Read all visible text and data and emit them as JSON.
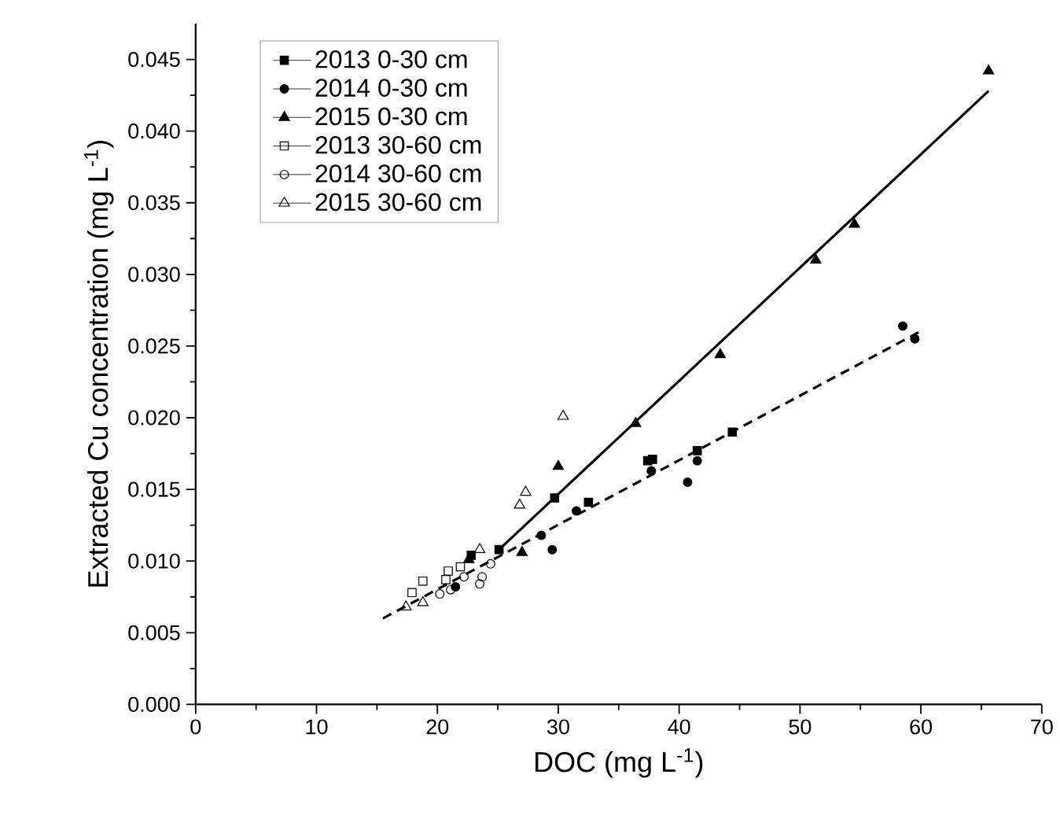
{
  "chart_data": {
    "type": "scatter",
    "xlabel": "DOC (mg L$^{-1}$)",
    "ylabel": "Extracted Cu concentration (mg L$^{-1}$)",
    "xlim": [
      0,
      70
    ],
    "ylim": [
      0,
      0.0475
    ],
    "xticks": [
      0,
      10,
      20,
      30,
      40,
      50,
      60,
      70
    ],
    "yticks": [
      {
        "value": 0,
        "label": "0.000"
      },
      {
        "value": 0.005,
        "label": "0.005"
      },
      {
        "value": 0.01,
        "label": "0.010"
      },
      {
        "value": 0.015,
        "label": "0.015"
      },
      {
        "value": 0.02,
        "label": "0.020"
      },
      {
        "value": 0.025,
        "label": "0.025"
      },
      {
        "value": 0.03,
        "label": "0.030"
      },
      {
        "value": 0.035,
        "label": "0.035"
      },
      {
        "value": 0.04,
        "label": "0.040"
      },
      {
        "value": 0.045,
        "label": "0.045"
      }
    ],
    "grid": false,
    "legend": "top left",
    "series": [
      {
        "name": "2013 0-30 cm",
        "color": "#000000",
        "marker": "square",
        "x": [
          22.8,
          25.1,
          29.7,
          32.5,
          37.4,
          37.8,
          41.5,
          44.4
        ],
        "values": [
          0.0104,
          0.0108,
          0.0144,
          0.0141,
          0.017,
          0.0171,
          0.0177,
          0.019
        ]
      },
      {
        "name": "2014 0-30 cm",
        "color": "#000000",
        "marker": "circle",
        "x": [
          21.5,
          28.6,
          29.5,
          31.5,
          37.7,
          40.7,
          41.5,
          58.5,
          59.5
        ],
        "values": [
          0.0082,
          0.0118,
          0.0108,
          0.0135,
          0.0163,
          0.0155,
          0.017,
          0.0264,
          0.0255
        ]
      },
      {
        "name": "2015 0-30 cm",
        "color": "#000000",
        "marker": "triangle",
        "x": [
          22.6,
          27.0,
          30.0,
          36.4,
          43.4,
          51.3,
          54.5,
          65.6
        ],
        "values": [
          0.0101,
          0.0106,
          0.0166,
          0.0196,
          0.0244,
          0.031,
          0.0335,
          0.0442
        ]
      },
      {
        "name": "2013 30-60 cm",
        "color": "#000000",
        "marker": "square-open",
        "x": [
          17.9,
          18.8,
          20.7,
          20.9,
          21.9
        ],
        "values": [
          0.0078,
          0.0086,
          0.0087,
          0.0093,
          0.0096
        ]
      },
      {
        "name": "2014 30-60 cm",
        "color": "#000000",
        "marker": "circle-open",
        "x": [
          20.2,
          21.1,
          22.2,
          23.5,
          23.7,
          24.4
        ],
        "values": [
          0.0077,
          0.008,
          0.0089,
          0.0084,
          0.0089,
          0.0098
        ]
      },
      {
        "name": "2015 30-60 cm",
        "color": "#000000",
        "marker": "triangle-open",
        "x": [
          17.4,
          18.8,
          23.5,
          26.8,
          27.3,
          30.4
        ],
        "values": [
          0.0068,
          0.0071,
          0.0108,
          0.0139,
          0.0148,
          0.0201
        ]
      },
      {
        "type": "line",
        "color": "#000000",
        "marker": "none",
        "line_style": "solid",
        "x": [
          25.1,
          65.6
        ],
        "values": [
          0.0108,
          0.0428
        ]
      },
      {
        "type": "line",
        "color": "#000000",
        "marker": "none",
        "line_style": "dashed",
        "x": [
          15.5,
          59.9
        ],
        "values": [
          0.006,
          0.026
        ]
      }
    ]
  }
}
